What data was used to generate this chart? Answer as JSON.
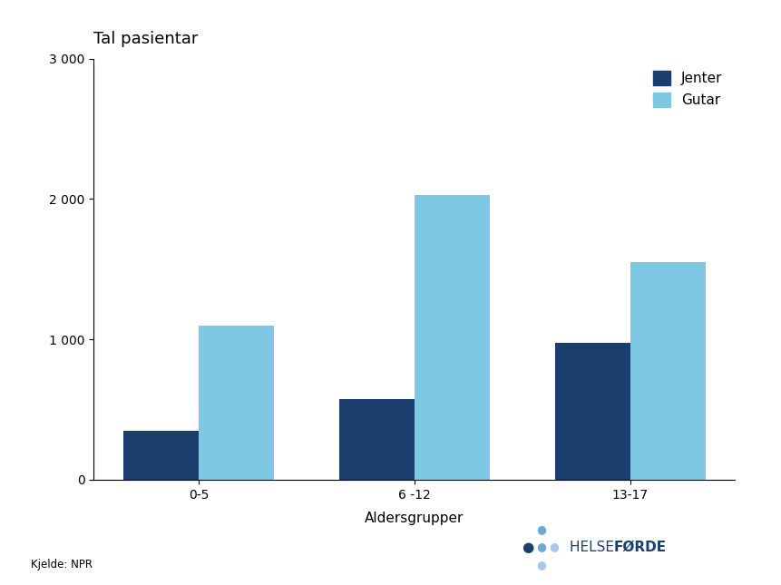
{
  "title": "Tal pasientar",
  "xlabel": "Aldersgrupper",
  "categories": [
    "0-5",
    "6 -12",
    "13-17"
  ],
  "jenter_values": [
    350,
    575,
    975
  ],
  "gutar_values": [
    1100,
    2025,
    1550
  ],
  "jenter_color": "#1a3e6e",
  "gutar_color": "#7ec8e3",
  "ylim": [
    0,
    3000
  ],
  "yticks": [
    0,
    1000,
    2000,
    3000
  ],
  "ytick_labels": [
    "0",
    "1 000",
    "2 000",
    "3 000"
  ],
  "background_color": "#ffffff",
  "bar_width": 0.35,
  "legend_labels": [
    "Jenter",
    "Gutar"
  ],
  "source_text": "Kjelde: NPR",
  "title_fontsize": 13,
  "axis_fontsize": 11,
  "tick_fontsize": 10,
  "legend_fontsize": 11,
  "logo_dot_dark": "#1a3e6e",
  "logo_dot_mid": "#6fa8d4",
  "logo_dot_light": "#a8c8e8",
  "logo_text_color": "#1a3e6e"
}
